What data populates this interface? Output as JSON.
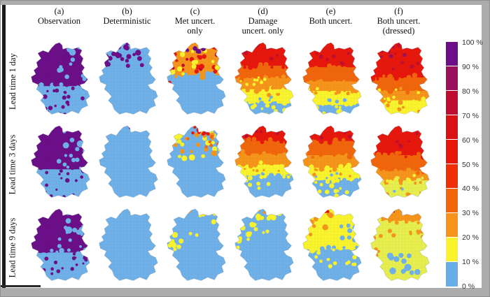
{
  "figure": {
    "columns": [
      "(a)\nObservation",
      "(b)\nDeterministic",
      "(c)\nMet uncert.\nonly",
      "(d)\nDamage\nuncert. only",
      "(e)\nBoth uncert.",
      "(f)\nBoth uncert.\n(dressed)"
    ],
    "rows": [
      "Lead time 1 day",
      "Lead time 3 days",
      "Lead time 9 days"
    ],
    "colorbar": {
      "labels": [
        "100 %",
        "90 %",
        "80 %",
        "70 %",
        "60 %",
        "50 %",
        "40 %",
        "30 %",
        "20 %",
        "10 %",
        "0 %"
      ],
      "colors": [
        "#6E0D88",
        "#99105E",
        "#BD0E31",
        "#D91117",
        "#E8170C",
        "#F02E05",
        "#F2660B",
        "#F6951A",
        "#FAF32B",
        "#69ADE6"
      ]
    },
    "palette": {
      "P": "#6B0E87",
      "B": "#6FB1E8",
      "Y": "#FAF42C",
      "YG": "#E7EF4E",
      "O": "#F6951A",
      "DO": "#F2660B",
      "R": "#E8170C",
      "DR": "#C00E2F",
      "M": "#99105E"
    },
    "panels": [
      [
        {
          "b": [
            [
              0.56,
              "P"
            ],
            [
              1,
              "B"
            ]
          ],
          "s": [
            [
              "B",
              0.55,
              0.98,
              0.05,
              0.28,
              9,
              2.5,
              5.5
            ],
            [
              "B",
              0.45,
              0.95,
              0.3,
              0.5,
              8,
              2,
              4
            ],
            [
              "P",
              0.08,
              0.92,
              0.6,
              0.97,
              26,
              1.5,
              3.5
            ]
          ]
        },
        {
          "b": [
            [
              1,
              "B"
            ]
          ],
          "s": [
            [
              "P",
              0.25,
              0.6,
              0,
              0.12,
              7,
              2.5,
              4.5
            ],
            [
              "P",
              0.15,
              0.75,
              0.12,
              0.35,
              18,
              2.5,
              5
            ]
          ]
        },
        {
          "b": [
            [
              0.42,
              "O"
            ],
            [
              1,
              "B"
            ]
          ],
          "s": [
            [
              "R",
              0.05,
              0.95,
              0.02,
              0.4,
              20,
              2,
              4.5
            ],
            [
              "Y",
              0.1,
              0.9,
              0.05,
              0.42,
              16,
              2,
              4
            ],
            [
              "P",
              0.2,
              0.8,
              0,
              0.15,
              8,
              2,
              4
            ],
            [
              "DR",
              0.1,
              0.85,
              0.05,
              0.35,
              7,
              2,
              3.5
            ],
            [
              "R",
              0,
              0.12,
              0.48,
              0.58,
              2,
              2,
              3
            ]
          ]
        },
        {
          "b": [
            [
              0.3,
              "R"
            ],
            [
              0.46,
              "DO"
            ],
            [
              0.6,
              "O"
            ],
            [
              0.78,
              "Y"
            ],
            [
              1,
              "B"
            ]
          ],
          "s": [
            [
              "DR",
              0.1,
              0.9,
              0.02,
              0.28,
              10,
              1.5,
              3.5
            ],
            [
              "O",
              0.1,
              0.9,
              0.5,
              0.68,
              8,
              2,
              3.5
            ],
            [
              "Y",
              0.1,
              0.9,
              0.68,
              0.95,
              16,
              2,
              4
            ],
            [
              "B",
              0.3,
              0.8,
              0.66,
              0.78,
              5,
              1.5,
              3
            ],
            [
              "Y",
              0.15,
              0.85,
              0.42,
              0.55,
              8,
              1.5,
              3
            ]
          ]
        },
        {
          "b": [
            [
              0.32,
              "R"
            ],
            [
              0.5,
              "DO"
            ],
            [
              0.62,
              "O"
            ],
            [
              0.8,
              "Y"
            ],
            [
              1,
              "B"
            ]
          ],
          "s": [
            [
              "DR",
              0.1,
              0.9,
              0.02,
              0.3,
              9,
              1.5,
              3.5
            ],
            [
              "Y",
              0.1,
              0.9,
              0.7,
              0.97,
              14,
              2,
              4
            ],
            [
              "O",
              0.15,
              0.85,
              0.52,
              0.66,
              7,
              1.5,
              3
            ],
            [
              "B",
              0.3,
              0.75,
              0.7,
              0.82,
              4,
              1.5,
              3
            ]
          ]
        },
        {
          "b": [
            [
              0.45,
              "R"
            ],
            [
              0.62,
              "DO"
            ],
            [
              0.74,
              "O"
            ],
            [
              1,
              "Y"
            ]
          ],
          "s": [
            [
              "DR",
              0.1,
              0.9,
              0.02,
              0.4,
              10,
              1.5,
              3.5
            ],
            [
              "O",
              0.1,
              0.9,
              0.75,
              0.95,
              8,
              1.5,
              3
            ],
            [
              "Y",
              0.15,
              0.85,
              0.6,
              0.74,
              7,
              1.5,
              3
            ],
            [
              "M",
              0.2,
              0.8,
              0.02,
              0.2,
              5,
              1.5,
              3
            ]
          ]
        }
      ],
      [
        {
          "b": [
            [
              0.56,
              "P"
            ],
            [
              1,
              "B"
            ]
          ],
          "s": [
            [
              "B",
              0.55,
              0.98,
              0.05,
              0.28,
              9,
              2.5,
              5.5
            ],
            [
              "B",
              0.45,
              0.95,
              0.3,
              0.5,
              8,
              2,
              4
            ],
            [
              "P",
              0.08,
              0.92,
              0.6,
              0.97,
              26,
              1.5,
              3.5
            ]
          ]
        },
        {
          "b": [
            [
              1,
              "B"
            ]
          ],
          "s": [
            [
              "P",
              0.28,
              0.55,
              0,
              0.1,
              6,
              2,
              4
            ]
          ]
        },
        {
          "b": [
            [
              1,
              "B"
            ]
          ],
          "s": [
            [
              "Y",
              0.1,
              0.95,
              0.05,
              0.42,
              22,
              2.5,
              5
            ],
            [
              "O",
              0.15,
              0.9,
              0.06,
              0.38,
              12,
              2,
              4.5
            ],
            [
              "R",
              0.25,
              0.75,
              0,
              0.12,
              7,
              2,
              4
            ],
            [
              "DO",
              0.2,
              0.85,
              0.1,
              0.3,
              6,
              2,
              3.5
            ]
          ]
        },
        {
          "b": [
            [
              0.2,
              "R"
            ],
            [
              0.36,
              "DO"
            ],
            [
              0.5,
              "O"
            ],
            [
              0.64,
              "Y"
            ],
            [
              1,
              "B"
            ]
          ],
          "s": [
            [
              "DR",
              0.15,
              0.85,
              0.02,
              0.18,
              7,
              1.5,
              3
            ],
            [
              "Y",
              0.15,
              0.9,
              0.64,
              0.8,
              10,
              2,
              3.5
            ],
            [
              "O",
              0.2,
              0.8,
              0.52,
              0.62,
              6,
              1.5,
              3
            ],
            [
              "B",
              0.3,
              0.7,
              0.6,
              0.68,
              3,
              1.5,
              2.5
            ]
          ]
        },
        {
          "b": [
            [
              0.2,
              "R"
            ],
            [
              0.38,
              "DO"
            ],
            [
              0.54,
              "O"
            ],
            [
              0.7,
              "Y"
            ],
            [
              1,
              "B"
            ]
          ],
          "s": [
            [
              "Y",
              0.1,
              0.9,
              0.7,
              0.92,
              14,
              2,
              4
            ],
            [
              "DR",
              0.2,
              0.8,
              0.02,
              0.16,
              6,
              1.5,
              3
            ],
            [
              "B",
              0.25,
              0.75,
              0.6,
              0.7,
              4,
              1.5,
              2.5
            ],
            [
              "O",
              0.2,
              0.85,
              0.56,
              0.66,
              6,
              1.5,
              3
            ]
          ]
        },
        {
          "b": [
            [
              0.38,
              "R"
            ],
            [
              0.58,
              "DO"
            ],
            [
              0.7,
              "O"
            ],
            [
              1,
              "YG"
            ]
          ],
          "s": [
            [
              "DR",
              0.15,
              0.85,
              0.02,
              0.3,
              8,
              1.5,
              3
            ],
            [
              "O",
              0.1,
              0.9,
              0.72,
              0.95,
              10,
              1.5,
              3.5
            ],
            [
              "Y",
              0.2,
              0.8,
              0.6,
              0.72,
              6,
              1.5,
              3
            ],
            [
              "B",
              0.4,
              0.6,
              0.8,
              0.9,
              2,
              2,
              3
            ]
          ]
        }
      ],
      [
        {
          "b": [
            [
              0.56,
              "P"
            ],
            [
              1,
              "B"
            ]
          ],
          "s": [
            [
              "B",
              0.55,
              0.98,
              0.05,
              0.28,
              9,
              2.5,
              5.5
            ],
            [
              "B",
              0.45,
              0.95,
              0.3,
              0.5,
              8,
              2,
              4
            ],
            [
              "P",
              0.08,
              0.92,
              0.6,
              0.97,
              26,
              1.5,
              3.5
            ]
          ]
        },
        {
          "b": [
            [
              1,
              "B"
            ]
          ],
          "s": []
        },
        {
          "b": [
            [
              1,
              "B"
            ]
          ],
          "s": [
            [
              "Y",
              0.55,
              0.95,
              0.05,
              0.18,
              8,
              2.5,
              4.5
            ],
            [
              "Y",
              0.03,
              0.3,
              0.3,
              0.58,
              10,
              2.5,
              4.5
            ],
            [
              "Y",
              0.42,
              0.56,
              0.28,
              0.38,
              2,
              2,
              3
            ],
            [
              "O",
              0.35,
              0.5,
              0,
              0.07,
              2,
              1.5,
              2.5
            ],
            [
              "O",
              0,
              0.08,
              0.35,
              0.6,
              3,
              1.5,
              2.5
            ]
          ]
        },
        {
          "b": [
            [
              1,
              "B"
            ]
          ],
          "s": [
            [
              "O",
              0.3,
              0.55,
              0,
              0.08,
              4,
              1.5,
              3
            ],
            [
              "Y",
              0.15,
              0.85,
              0.06,
              0.2,
              9,
              2.5,
              4.5
            ],
            [
              "Y",
              0.02,
              0.35,
              0.2,
              0.5,
              11,
              2.5,
              4.5
            ],
            [
              "Y",
              0.35,
              0.65,
              0.15,
              0.33,
              5,
              2,
              3.5
            ]
          ]
        },
        {
          "b": [
            [
              0.52,
              "Y"
            ],
            [
              1,
              "B"
            ]
          ],
          "s": [
            [
              "O",
              0.05,
              0.5,
              0.05,
              0.42,
              11,
              2,
              4.5
            ],
            [
              "DO",
              0,
              0.3,
              0.2,
              0.45,
              5,
              1.5,
              3.5
            ],
            [
              "B",
              0.6,
              0.92,
              0.2,
              0.42,
              8,
              2.5,
              4.5
            ],
            [
              "Y",
              0.1,
              0.9,
              0.52,
              0.75,
              14,
              2,
              3.5
            ],
            [
              "R",
              0.35,
              0.5,
              0,
              0.06,
              2,
              1.5,
              2.5
            ]
          ]
        },
        {
          "b": [
            [
              0.16,
              "O"
            ],
            [
              1,
              "YG"
            ]
          ],
          "s": [
            [
              "DO",
              0.3,
              0.6,
              0,
              0.09,
              4,
              1.5,
              3
            ],
            [
              "O",
              0.05,
              0.95,
              0.12,
              0.45,
              14,
              2,
              4
            ],
            [
              "O",
              0,
              0.2,
              0.25,
              0.6,
              7,
              2,
              3.5
            ],
            [
              "B",
              0.35,
              0.8,
              0.58,
              0.85,
              12,
              3,
              5.5
            ],
            [
              "DR",
              0.32,
              0.48,
              0,
              0.05,
              2,
              1.2,
              2.2
            ]
          ]
        }
      ]
    ]
  }
}
